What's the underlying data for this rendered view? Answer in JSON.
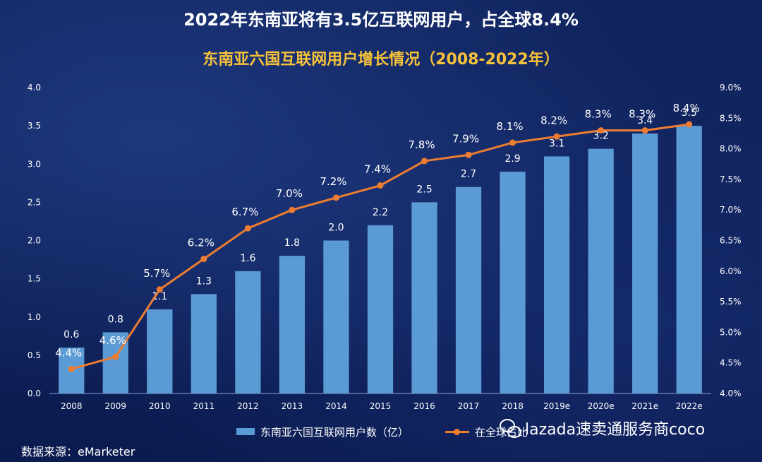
{
  "title": "2022年东南亚将有3.5亿互联网用户，占全球8.4%",
  "subtitle": "东南亚六国互联网用户增长情况（2008-2022年）",
  "source": "数据来源：eMarketer",
  "watermark": "lazada速卖通服务商coco",
  "legend": {
    "bar_label": "东南亚六国互联网用户数（亿）",
    "line_label": "在全球占比"
  },
  "chart_data": {
    "type": "bar",
    "title": "东南亚六国互联网用户增长情况（2008-2022年）",
    "categories": [
      "2008",
      "2009",
      "2010",
      "2011",
      "2012",
      "2013",
      "2014",
      "2015",
      "2016",
      "2017",
      "2018",
      "2019e",
      "2020e",
      "2021e",
      "2022e"
    ],
    "series": [
      {
        "name": "东南亚六国互联网用户数（亿）",
        "type": "bar",
        "axis": "left",
        "values": [
          0.6,
          0.8,
          1.1,
          1.3,
          1.6,
          1.8,
          2.0,
          2.2,
          2.5,
          2.7,
          2.9,
          3.1,
          3.2,
          3.4,
          3.5
        ],
        "labels": [
          "0.6",
          "0.8",
          "1.1",
          "1.3",
          "1.6",
          "1.8",
          "2.0",
          "2.2",
          "2.5",
          "2.7",
          "2.9",
          "3.1",
          "3.2",
          "3.4",
          "3.5"
        ],
        "color": "#5b9bd5"
      },
      {
        "name": "在全球占比",
        "type": "line",
        "axis": "right",
        "values": [
          4.4,
          4.6,
          5.7,
          6.2,
          6.7,
          7.0,
          7.2,
          7.4,
          7.8,
          7.9,
          8.1,
          8.2,
          8.3,
          8.3,
          8.4
        ],
        "labels": [
          "4.4%",
          "4.6%",
          "5.7%",
          "6.2%",
          "6.7%",
          "7.0%",
          "7.2%",
          "7.4%",
          "7.8%",
          "7.9%",
          "8.1%",
          "8.2%",
          "8.3%",
          "8.3%",
          "8.4%"
        ],
        "color": "#ed7d31"
      }
    ],
    "y_left": {
      "range": [
        0,
        4.0
      ],
      "ticks": [
        0,
        0.5,
        1.0,
        1.5,
        2.0,
        2.5,
        3.0,
        3.5,
        4.0
      ],
      "tick_labels": [
        "0.0",
        "0.5",
        "1.0",
        "1.5",
        "2.0",
        "2.5",
        "3.0",
        "3.5",
        "4.0"
      ]
    },
    "y_right": {
      "range": [
        4.0,
        9.0
      ],
      "ticks": [
        4.0,
        4.5,
        5.0,
        5.5,
        6.0,
        6.5,
        7.0,
        7.5,
        8.0,
        8.5,
        9.0
      ],
      "tick_labels": [
        "4.0%",
        "4.5%",
        "5.0%",
        "5.5%",
        "6.0%",
        "6.5%",
        "7.0%",
        "7.5%",
        "8.0%",
        "8.5%",
        "9.0%"
      ]
    },
    "grid": false,
    "legend_position": "bottom"
  }
}
